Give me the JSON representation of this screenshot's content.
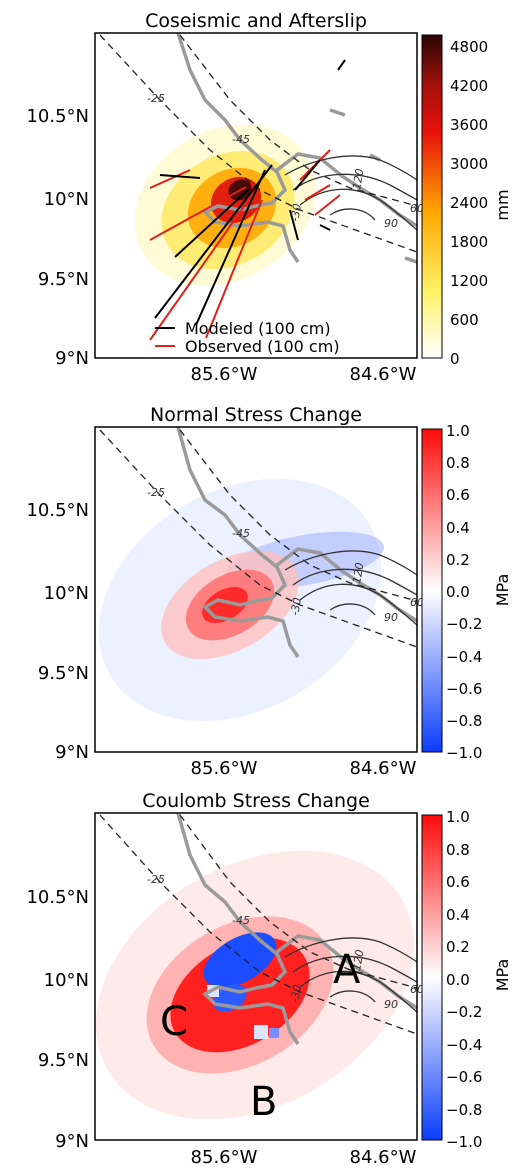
{
  "chart_data": [
    {
      "type": "heatmap",
      "title": "Coseismic and Afterslip",
      "x_ticks": [
        "85.6°W",
        "84.6°W"
      ],
      "y_ticks": [
        "10.5°N",
        "10°N",
        "9.5°N",
        "9°N"
      ],
      "colorbar": {
        "label": "mm",
        "ticks": [
          "4800",
          "4200",
          "3600",
          "3000",
          "2400",
          "1800",
          "1200",
          "600",
          "0"
        ],
        "range": [
          0,
          5000
        ],
        "colormap": "hot_r"
      },
      "contour_labels": [
        "-25",
        "-45",
        "-30",
        "120",
        "90",
        "60"
      ],
      "legend": [
        {
          "name": "Modeled  (100 cm)",
          "color": "#000000"
        },
        {
          "name": "Observed (100 cm)",
          "color": "#e0201b"
        }
      ]
    },
    {
      "type": "heatmap",
      "title": "Normal Stress Change",
      "x_ticks": [
        "85.6°W",
        "84.6°W"
      ],
      "y_ticks": [
        "10.5°N",
        "10°N",
        "9.5°N",
        "9°N"
      ],
      "colorbar": {
        "label": "MPa",
        "ticks": [
          "1.0",
          "0.8",
          "0.6",
          "0.4",
          "0.2",
          "0.0",
          "−0.2",
          "−0.4",
          "−0.6",
          "−0.8",
          "−1.0"
        ],
        "range": [
          -1.0,
          1.0
        ],
        "colormap": "bwr"
      },
      "contour_labels": [
        "-25",
        "-45",
        "-30",
        "120",
        "90",
        "60"
      ]
    },
    {
      "type": "heatmap",
      "title": "Coulomb Stress Change",
      "x_ticks": [
        "85.6°W",
        "84.6°W"
      ],
      "y_ticks": [
        "10.5°N",
        "10°N",
        "9.5°N",
        "9°N"
      ],
      "colorbar": {
        "label": "MPa",
        "ticks": [
          "1.0",
          "0.8",
          "0.6",
          "0.4",
          "0.2",
          "0.0",
          "−0.2",
          "−0.4",
          "−0.6",
          "−0.8",
          "−1.0"
        ],
        "range": [
          -1.0,
          1.0
        ],
        "colormap": "bwr"
      },
      "contour_labels": [
        "-25",
        "-45",
        "-30",
        "120",
        "90",
        "60"
      ],
      "annotations": [
        "A",
        "B",
        "C"
      ]
    }
  ]
}
